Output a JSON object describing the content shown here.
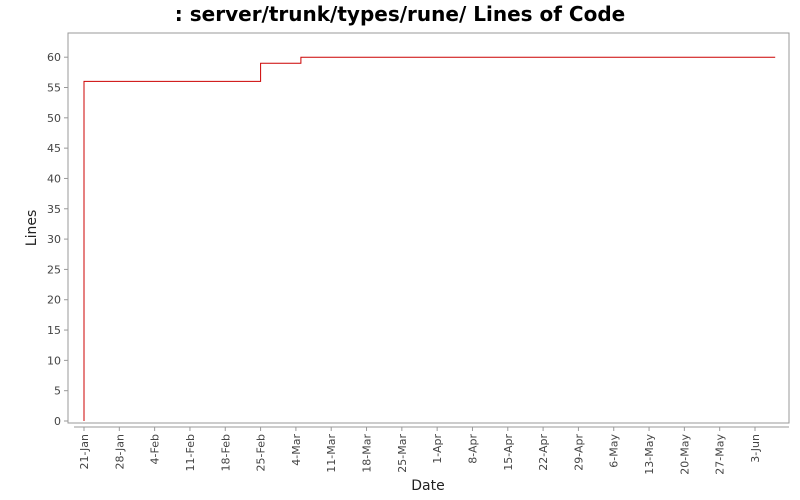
{
  "chart_data": {
    "type": "line",
    "title": ": server/trunk/types/rune/ Lines of Code",
    "xlabel": "Date",
    "ylabel": "Lines",
    "ylim": [
      0,
      63
    ],
    "y_ticks": [
      0,
      5,
      10,
      15,
      20,
      25,
      30,
      35,
      40,
      45,
      50,
      55,
      60
    ],
    "x_ticks": [
      "21-Jan",
      "28-Jan",
      "4-Feb",
      "11-Feb",
      "18-Feb",
      "25-Feb",
      "4-Mar",
      "11-Mar",
      "18-Mar",
      "25-Mar",
      "1-Apr",
      "8-Apr",
      "15-Apr",
      "22-Apr",
      "29-Apr",
      "6-May",
      "13-May",
      "20-May",
      "27-May",
      "3-Jun"
    ],
    "line_style": "step",
    "color": "#cc0000",
    "grid": false,
    "series": [
      {
        "x": [
          "21-Jan",
          "21-Jan",
          "25-Feb",
          "5-Mar",
          "7-Jun"
        ],
        "values": [
          0,
          56,
          59,
          60,
          60
        ]
      }
    ]
  }
}
